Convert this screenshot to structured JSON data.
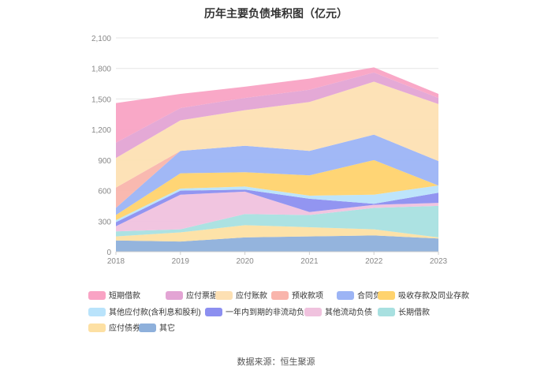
{
  "chart_data": {
    "type": "area",
    "stacked": true,
    "title": "历年主要负债堆积图（亿元）",
    "x": [
      "2018",
      "2019",
      "2020",
      "2021",
      "2022",
      "2023"
    ],
    "y_ticks": [
      "0",
      "300",
      "600",
      "900",
      "1,200",
      "1,500",
      "1,800",
      "2,100"
    ],
    "ylim": [
      0,
      2100
    ],
    "grid": true,
    "legend_position": "bottom",
    "series": [
      {
        "name": "其它",
        "color": "#8eb0db",
        "values": [
          110,
          100,
          140,
          150,
          160,
          130
        ]
      },
      {
        "name": "应付债券",
        "color": "#fde0a3",
        "values": [
          40,
          90,
          120,
          90,
          60,
          10
        ]
      },
      {
        "name": "长期借款",
        "color": "#a8e0e0",
        "values": [
          50,
          30,
          110,
          120,
          210,
          310
        ]
      },
      {
        "name": "其他流动负债",
        "color": "#f0c2de",
        "values": [
          50,
          340,
          220,
          30,
          30,
          30
        ]
      },
      {
        "name": "一年内到期的非流动负债",
        "color": "#8c8ff0",
        "values": [
          40,
          40,
          20,
          130,
          10,
          100
        ]
      },
      {
        "name": "其他应付款(含利息和股利)",
        "color": "#b9e3fb",
        "values": [
          20,
          20,
          30,
          30,
          90,
          70
        ]
      },
      {
        "name": "吸收存款及同业存款",
        "color": "#ffd36e",
        "values": [
          50,
          150,
          140,
          200,
          340,
          0
        ]
      },
      {
        "name": "合同负债",
        "color": "#9cb4f5",
        "values": [
          70,
          220,
          260,
          240,
          250,
          240
        ]
      },
      {
        "name": "预收款项",
        "color": "#f9b5ac",
        "values": [
          200,
          0,
          0,
          0,
          0,
          0
        ]
      },
      {
        "name": "应付账款",
        "color": "#fde0b3",
        "values": [
          290,
          300,
          350,
          480,
          520,
          560
        ]
      },
      {
        "name": "应付票据",
        "color": "#e3a4d4",
        "values": [
          150,
          120,
          120,
          120,
          90,
          60
        ]
      },
      {
        "name": "短期借款",
        "color": "#f9a3c4",
        "values": [
          390,
          140,
          110,
          110,
          50,
          40
        ]
      }
    ],
    "legend_order": [
      "短期借款",
      "应付票据",
      "应付账款",
      "预收款项",
      "合同负债",
      "吸收存款及同业存款",
      "其他应付款(含利息和股利)",
      "一年内到期的非流动负债",
      "其他流动负债",
      "长期借款",
      "应付债券",
      "其它"
    ]
  },
  "footer": {
    "source": "数据来源：恒生聚源"
  }
}
